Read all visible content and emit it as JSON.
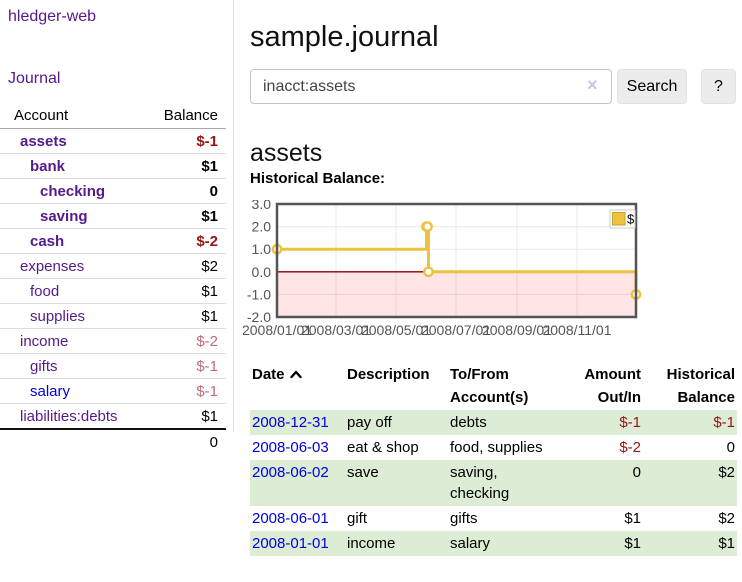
{
  "sidebar": {
    "brand": "hledger-web",
    "nav": {
      "journal": "Journal"
    },
    "accounts": {
      "header_account": "Account",
      "header_balance": "Balance",
      "rows": [
        {
          "name": "assets",
          "balance": "$-1"
        },
        {
          "name": "bank",
          "balance": "$1"
        },
        {
          "name": "checking",
          "balance": "0"
        },
        {
          "name": "saving",
          "balance": "$1"
        },
        {
          "name": "cash",
          "balance": "$-2"
        },
        {
          "name": "expenses",
          "balance": "$2"
        },
        {
          "name": "food",
          "balance": "$1"
        },
        {
          "name": "supplies",
          "balance": "$1"
        },
        {
          "name": "income",
          "balance": "$-2"
        },
        {
          "name": "gifts",
          "balance": "$-1"
        },
        {
          "name": "salary",
          "balance": "$-1"
        },
        {
          "name": "liabilities:debts",
          "balance": "$1"
        }
      ],
      "total": "0"
    }
  },
  "main": {
    "title": "sample.journal",
    "search": {
      "value": "inacct:assets",
      "clear": "×",
      "button": "Search",
      "help": "?"
    },
    "heading": "assets",
    "chart_title": "Historical Balance:"
  },
  "chart_data": {
    "type": "line",
    "step": true,
    "title": "Historical Balance:",
    "series": [
      {
        "name": "$",
        "color": "#edc240",
        "points": [
          [
            "2008-01-01",
            1
          ],
          [
            "2008-06-01",
            2
          ],
          [
            "2008-06-02",
            2
          ],
          [
            "2008-06-03",
            0
          ],
          [
            "2008-12-31",
            -1
          ]
        ]
      }
    ],
    "x_range": [
      "2008-01-01",
      "2008-12-31"
    ],
    "x_tick_labels": [
      "2008/01/01",
      "2008/03/01",
      "2008/05/01",
      "2008/07/01",
      "2008/09/01",
      "2008/11/01"
    ],
    "y_tick_labels": [
      "3.0",
      "2.0",
      "1.0",
      "0.0",
      "-1.0",
      "-2.0"
    ],
    "ylim": [
      -2,
      3
    ],
    "grid": true,
    "legend": {
      "position": "top-right",
      "label": "$"
    },
    "colors": {
      "line": "#edc240",
      "negative_region_fill": "rgba(255,0,0,0.10)",
      "zero_line": "#8b0000",
      "plot_border": "#545454",
      "gridline": "#e9e9e9",
      "tick_text": "#545454"
    }
  },
  "register": {
    "headers": {
      "date": "Date",
      "description": "Description",
      "accounts": "To/From Account(s)",
      "amount": "Amount Out/In",
      "balance": "Historical Balance"
    },
    "rows": [
      {
        "date": "2008-12-31",
        "description": "pay off",
        "accounts": "debts",
        "amount": "$-1",
        "balance": "$-1"
      },
      {
        "date": "2008-06-03",
        "description": "eat & shop",
        "accounts": "food, supplies",
        "amount": "$-2",
        "balance": "0"
      },
      {
        "date": "2008-06-02",
        "description": "save",
        "accounts": "saving, checking",
        "amount": "0",
        "balance": "$2"
      },
      {
        "date": "2008-06-01",
        "description": "gift",
        "accounts": "gifts",
        "amount": "$1",
        "balance": "$2"
      },
      {
        "date": "2008-01-01",
        "description": "income",
        "accounts": "salary",
        "amount": "$1",
        "balance": "$1"
      }
    ]
  }
}
